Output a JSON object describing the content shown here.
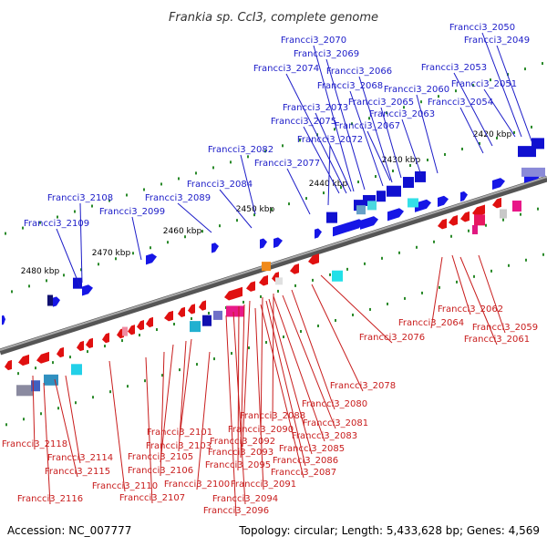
{
  "title": "Frankia sp. CcI3, complete genome",
  "footer": {
    "accession": "Accession: NC_007777",
    "summary": "Topology: circular; Length: 5,433,628 bp; Genes: 4,569"
  },
  "colors": {
    "forward_label": "#1c1cc8",
    "reverse_label": "#c81c1c",
    "backbone": "#7a7a7a",
    "tick_dot": "#2a8a2a"
  },
  "scale_ticks": [
    {
      "label": "2420 kbp"
    },
    {
      "label": "2430 kbp"
    },
    {
      "label": "2440 kbp"
    },
    {
      "label": "2450 kbp"
    },
    {
      "label": "2460 kbp"
    },
    {
      "label": "2470 kbp"
    },
    {
      "label": "2480 kbp"
    }
  ],
  "forward_genes": [
    "Francci3_2050",
    "Francci3_2049",
    "Francci3_2070",
    "Francci3_2069",
    "Francci3_2074",
    "Francci3_2066",
    "Francci3_2053",
    "Francci3_2068",
    "Francci3_2051",
    "Francci3_2060",
    "Francci3_2065",
    "Francci3_2054",
    "Francci3_2073",
    "Francci3_2063",
    "Francci3_2075",
    "Francci3_2067",
    "Francci3_2072",
    "Francci3_2082",
    "Francci3_2077",
    "Francci3_2084",
    "Francci3_2108",
    "Francci3_2089",
    "Francci3_2099",
    "Francci3_2109"
  ],
  "reverse_genes": [
    "Francci3_2062",
    "Francci3_2064",
    "Francci3_2059",
    "Francci3_2061",
    "Francci3_2076",
    "Francci3_2078",
    "Francci3_2080",
    "Francci3_2088",
    "Francci3_2081",
    "Francci3_2090",
    "Francci3_2083",
    "Francci3_2101",
    "Francci3_2092",
    "Francci3_2085",
    "Francci3_2103",
    "Francci3_2093",
    "Francci3_2086",
    "Francci3_2118",
    "Francci3_2105",
    "Francci3_2095",
    "Francci3_2087",
    "Francci3_2114",
    "Francci3_2115",
    "Francci3_2106",
    "Francci3_2100",
    "Francci3_2091",
    "Francci3_2110",
    "Francci3_2094",
    "Francci3_2116",
    "Francci3_2107",
    "Francci3_2096"
  ]
}
